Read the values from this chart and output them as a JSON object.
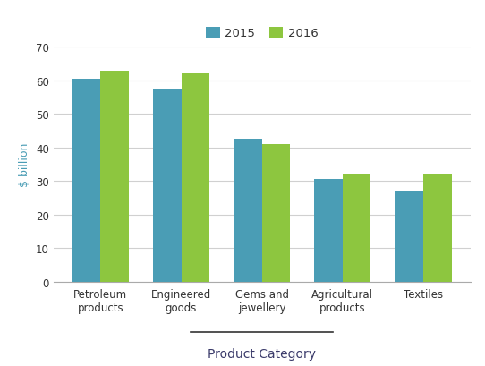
{
  "categories": [
    "Petroleum\nproducts",
    "Engineered\ngoods",
    "Gems and\njewellery",
    "Agricultural\nproducts",
    "Textiles"
  ],
  "values_2015": [
    60.5,
    57.5,
    42.5,
    30.5,
    27.0
  ],
  "values_2016": [
    63.0,
    62.0,
    41.0,
    32.0,
    32.0
  ],
  "color_2015": "#4a9db5",
  "color_2016": "#8dc63f",
  "ylabel": "$ billion",
  "xlabel": "Product Category",
  "legend_labels": [
    "2015",
    "2016"
  ],
  "ylim": [
    0,
    70
  ],
  "yticks": [
    0,
    10,
    20,
    30,
    40,
    50,
    60,
    70
  ],
  "bar_width": 0.35,
  "legend_fontsize": 9.5,
  "tick_fontsize": 8.5,
  "ylabel_fontsize": 9,
  "xlabel_fontsize": 10,
  "ylabel_color": "#4a9db5",
  "xlabel_color": "#3a3a6a",
  "tick_label_color": "#333333",
  "grid_color": "#d0d0d0",
  "spine_color": "#aaaaaa",
  "underline_color": "#333333"
}
